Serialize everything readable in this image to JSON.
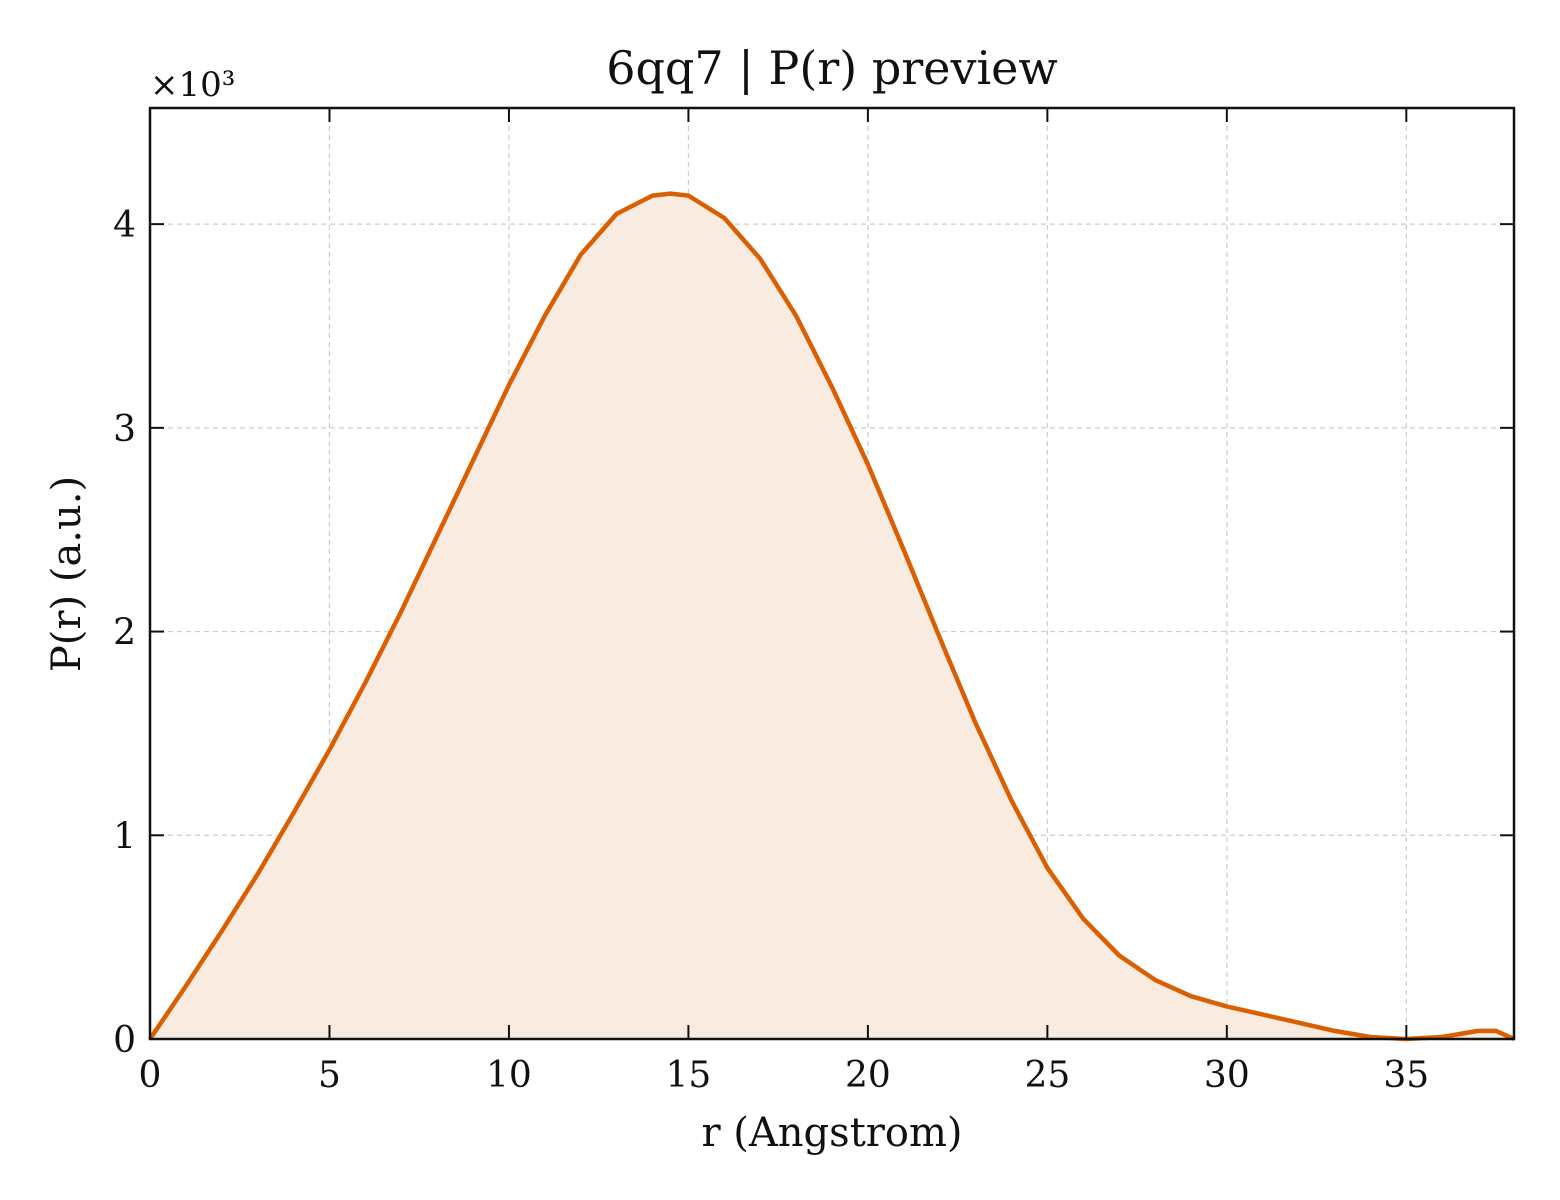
{
  "chart_data": {
    "type": "area",
    "title": "6qq7 | P(r) preview",
    "xlabel": "r (Angstrom)",
    "ylabel": "P(r) (a.u.)",
    "y_multiplier_label": "×10³",
    "xlim": [
      0,
      38
    ],
    "ylim": [
      0,
      4.57
    ],
    "x_ticks": [
      0,
      5,
      10,
      15,
      20,
      25,
      30,
      35
    ],
    "y_ticks": [
      0,
      1,
      2,
      3,
      4
    ],
    "grid": true,
    "line_color": "#d95f02",
    "fill_color": "#f9ebe0",
    "series": [
      {
        "x": [
          0,
          1,
          2,
          3,
          4,
          5,
          6,
          7,
          8,
          9,
          10,
          11,
          12,
          13,
          14,
          14.5,
          15,
          16,
          17,
          18,
          19,
          20,
          21,
          22,
          23,
          24,
          25,
          26,
          27,
          28,
          29,
          30,
          31,
          32,
          33,
          34,
          35,
          36,
          37,
          37.5,
          38
        ],
        "y": [
          0,
          0.26,
          0.53,
          0.81,
          1.11,
          1.42,
          1.75,
          2.1,
          2.47,
          2.84,
          3.21,
          3.55,
          3.85,
          4.05,
          4.14,
          4.15,
          4.14,
          4.03,
          3.83,
          3.55,
          3.2,
          2.82,
          2.4,
          1.97,
          1.55,
          1.17,
          0.84,
          0.59,
          0.41,
          0.29,
          0.21,
          0.16,
          0.12,
          0.08,
          0.04,
          0.01,
          0.0,
          0.01,
          0.04,
          0.04,
          0.0
        ]
      }
    ]
  }
}
